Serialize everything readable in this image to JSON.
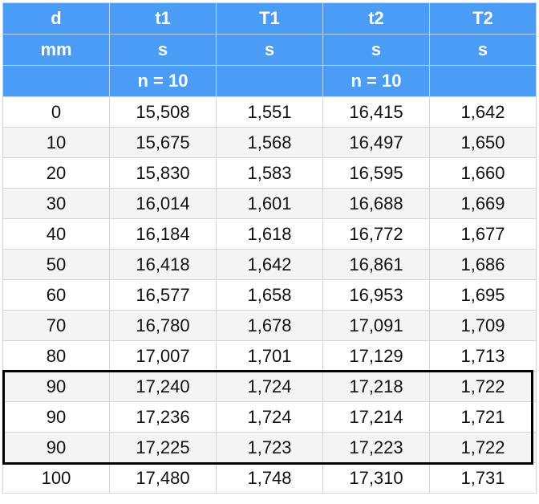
{
  "header": {
    "row1": [
      "d",
      "t1",
      "T1",
      "t2",
      "T2"
    ],
    "row2": [
      "mm",
      "s",
      "s",
      "s",
      "s"
    ],
    "row3": [
      "",
      "n = 10",
      "",
      "n = 10",
      ""
    ]
  },
  "rows": [
    [
      "0",
      "15,508",
      "1,551",
      "16,415",
      "1,642"
    ],
    [
      "10",
      "15,675",
      "1,568",
      "16,497",
      "1,650"
    ],
    [
      "20",
      "15,830",
      "1,583",
      "16,595",
      "1,660"
    ],
    [
      "30",
      "16,014",
      "1,601",
      "16,688",
      "1,669"
    ],
    [
      "40",
      "16,184",
      "1,618",
      "16,772",
      "1,677"
    ],
    [
      "50",
      "16,418",
      "1,642",
      "16,861",
      "1,686"
    ],
    [
      "60",
      "16,577",
      "1,658",
      "16,953",
      "1,695"
    ],
    [
      "70",
      "16,780",
      "1,678",
      "17,091",
      "1,709"
    ],
    [
      "80",
      "17,007",
      "1,701",
      "17,129",
      "1,713"
    ],
    [
      "90",
      "17,240",
      "1,724",
      "17,218",
      "1,722"
    ],
    [
      "90",
      "17,236",
      "1,724",
      "17,214",
      "1,721"
    ],
    [
      "90",
      "17,225",
      "1,723",
      "17,223",
      "1,722"
    ],
    [
      "100",
      "17,480",
      "1,748",
      "17,310",
      "1,731"
    ]
  ],
  "colors": {
    "header_bg": "#4a9cf5",
    "header_text": "#ffffff",
    "alt_row_bg": "#f4f4f3",
    "highlight_border": "#000000"
  }
}
